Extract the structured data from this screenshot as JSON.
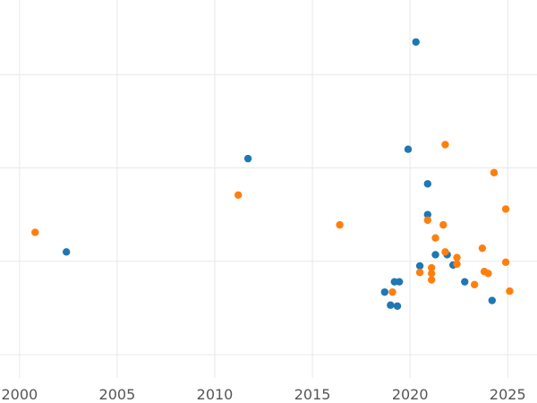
{
  "chart_data": {
    "type": "scatter",
    "title": "",
    "xlabel": "",
    "ylabel": "",
    "xlim": [
      1999,
      2026.5
    ],
    "ylim": [
      -0.25,
      3.8
    ],
    "xticks": [
      2000,
      2005,
      2010,
      2015,
      2020,
      2025
    ],
    "xtick_labels": [
      "2000",
      "2005",
      "2010",
      "2015",
      "2020",
      "2025"
    ],
    "ygrid": [
      0,
      1,
      2,
      3,
      4
    ],
    "grid": true,
    "legend": "none",
    "series": [
      {
        "color": "#1f77b4",
        "points": [
          {
            "x": 2002.4,
            "y": 1.1
          },
          {
            "x": 2011.7,
            "y": 2.1
          },
          {
            "x": 2019.9,
            "y": 2.2
          },
          {
            "x": 2020.3,
            "y": 3.35
          },
          {
            "x": 2020.9,
            "y": 1.83
          },
          {
            "x": 2020.9,
            "y": 1.5
          },
          {
            "x": 2021.3,
            "y": 1.07
          },
          {
            "x": 2021.9,
            "y": 1.07
          },
          {
            "x": 2020.5,
            "y": 0.95
          },
          {
            "x": 2019.2,
            "y": 0.78
          },
          {
            "x": 2019.45,
            "y": 0.78
          },
          {
            "x": 2018.7,
            "y": 0.67
          },
          {
            "x": 2019.0,
            "y": 0.53
          },
          {
            "x": 2019.35,
            "y": 0.52
          },
          {
            "x": 2022.2,
            "y": 0.96
          },
          {
            "x": 2022.8,
            "y": 0.78
          },
          {
            "x": 2024.2,
            "y": 0.58
          }
        ]
      },
      {
        "color": "#ff7f0e",
        "points": [
          {
            "x": 2000.8,
            "y": 1.31
          },
          {
            "x": 2011.2,
            "y": 1.71
          },
          {
            "x": 2016.4,
            "y": 1.39
          },
          {
            "x": 2020.9,
            "y": 1.44
          },
          {
            "x": 2021.3,
            "y": 1.25
          },
          {
            "x": 2021.7,
            "y": 1.39
          },
          {
            "x": 2021.8,
            "y": 1.1
          },
          {
            "x": 2021.8,
            "y": 2.25
          },
          {
            "x": 2022.4,
            "y": 1.04
          },
          {
            "x": 2022.4,
            "y": 0.97
          },
          {
            "x": 2021.1,
            "y": 0.93
          },
          {
            "x": 2021.1,
            "y": 0.87
          },
          {
            "x": 2021.1,
            "y": 0.8
          },
          {
            "x": 2020.5,
            "y": 0.88
          },
          {
            "x": 2019.1,
            "y": 0.67
          },
          {
            "x": 2023.3,
            "y": 0.75
          },
          {
            "x": 2023.7,
            "y": 1.14
          },
          {
            "x": 2023.8,
            "y": 0.89
          },
          {
            "x": 2024.0,
            "y": 0.87
          },
          {
            "x": 2024.3,
            "y": 1.95
          },
          {
            "x": 2024.9,
            "y": 1.56
          },
          {
            "x": 2024.9,
            "y": 0.99
          },
          {
            "x": 2025.1,
            "y": 0.68
          }
        ]
      }
    ]
  }
}
